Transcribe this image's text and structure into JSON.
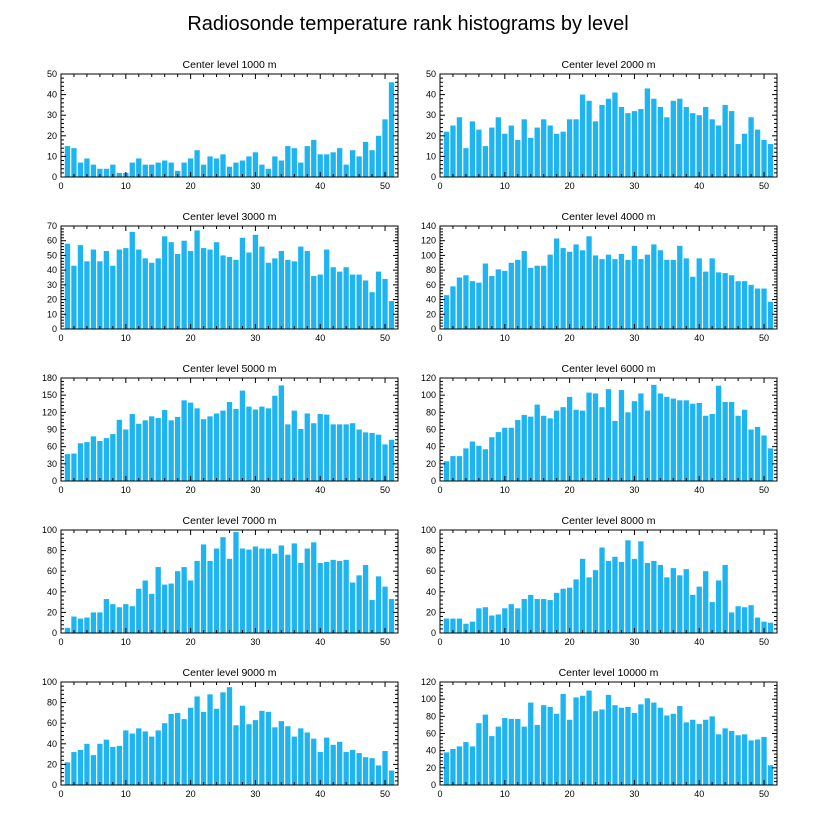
{
  "figure": {
    "title": "Radiosonde temperature rank histograms by level"
  },
  "chart_data": [
    {
      "type": "bar",
      "title": "Center level 1000 m",
      "xlim": [
        0,
        52
      ],
      "ylim": [
        0,
        50
      ],
      "xticks": [
        0,
        10,
        20,
        30,
        40,
        50
      ],
      "yticks": [
        0,
        10,
        20,
        30,
        40,
        50
      ],
      "x": [
        1,
        2,
        3,
        4,
        5,
        6,
        7,
        8,
        9,
        10,
        11,
        12,
        13,
        14,
        15,
        16,
        17,
        18,
        19,
        20,
        21,
        22,
        23,
        24,
        25,
        26,
        27,
        28,
        29,
        30,
        31,
        32,
        33,
        34,
        35,
        36,
        37,
        38,
        39,
        40,
        41,
        42,
        43,
        44,
        45,
        46,
        47,
        48,
        49,
        50,
        51
      ],
      "values": [
        15,
        14,
        7,
        9,
        6,
        4,
        4,
        6,
        2,
        2,
        7,
        9,
        6,
        6,
        7,
        8,
        7,
        3,
        7,
        9,
        13,
        6,
        10,
        9,
        11,
        5,
        7,
        8,
        10,
        12,
        6,
        4,
        10,
        8,
        15,
        14,
        7,
        15,
        18,
        11,
        11,
        12,
        14,
        6,
        13,
        10,
        17,
        13,
        20,
        28,
        46
      ]
    },
    {
      "type": "bar",
      "title": "Center level 2000 m",
      "xlim": [
        0,
        52
      ],
      "ylim": [
        0,
        50
      ],
      "xticks": [
        0,
        10,
        20,
        30,
        40,
        50
      ],
      "yticks": [
        0,
        10,
        20,
        30,
        40,
        50
      ],
      "x": [
        1,
        2,
        3,
        4,
        5,
        6,
        7,
        8,
        9,
        10,
        11,
        12,
        13,
        14,
        15,
        16,
        17,
        18,
        19,
        20,
        21,
        22,
        23,
        24,
        25,
        26,
        27,
        28,
        29,
        30,
        31,
        32,
        33,
        34,
        35,
        36,
        37,
        38,
        39,
        40,
        41,
        42,
        43,
        44,
        45,
        46,
        47,
        48,
        49,
        50,
        51
      ],
      "values": [
        22,
        25,
        29,
        14,
        27,
        23,
        15,
        24,
        29,
        21,
        25,
        18,
        28,
        19,
        24,
        28,
        25,
        21,
        22,
        28,
        28,
        40,
        37,
        27,
        35,
        38,
        41,
        34,
        31,
        32,
        33,
        43,
        38,
        34,
        29,
        37,
        38,
        34,
        31,
        30,
        34,
        28,
        25,
        35,
        32,
        16,
        21,
        29,
        23,
        18,
        16
      ]
    },
    {
      "type": "bar",
      "title": "Center level 3000 m",
      "xlim": [
        0,
        52
      ],
      "ylim": [
        0,
        70
      ],
      "xticks": [
        0,
        10,
        20,
        30,
        40,
        50
      ],
      "yticks": [
        0,
        10,
        20,
        30,
        40,
        50,
        60,
        70
      ],
      "x": [
        1,
        2,
        3,
        4,
        5,
        6,
        7,
        8,
        9,
        10,
        11,
        12,
        13,
        14,
        15,
        16,
        17,
        18,
        19,
        20,
        21,
        22,
        23,
        24,
        25,
        26,
        27,
        28,
        29,
        30,
        31,
        32,
        33,
        34,
        35,
        36,
        37,
        38,
        39,
        40,
        41,
        42,
        43,
        44,
        45,
        46,
        47,
        48,
        49,
        50,
        51
      ],
      "values": [
        58,
        43,
        57,
        46,
        54,
        46,
        53,
        43,
        54,
        55,
        66,
        54,
        48,
        45,
        48,
        63,
        59,
        51,
        60,
        53,
        67,
        55,
        54,
        59,
        50,
        49,
        47,
        62,
        52,
        64,
        56,
        45,
        48,
        53,
        47,
        46,
        56,
        53,
        36,
        37,
        54,
        42,
        39,
        42,
        37,
        37,
        33,
        25,
        39,
        34,
        19
      ]
    },
    {
      "type": "bar",
      "title": "Center level 4000 m",
      "xlim": [
        0,
        52
      ],
      "ylim": [
        0,
        140
      ],
      "xticks": [
        0,
        10,
        20,
        30,
        40,
        50
      ],
      "yticks": [
        0,
        20,
        40,
        60,
        80,
        100,
        120,
        140
      ],
      "x": [
        1,
        2,
        3,
        4,
        5,
        6,
        7,
        8,
        9,
        10,
        11,
        12,
        13,
        14,
        15,
        16,
        17,
        18,
        19,
        20,
        21,
        22,
        23,
        24,
        25,
        26,
        27,
        28,
        29,
        30,
        31,
        32,
        33,
        34,
        35,
        36,
        37,
        38,
        39,
        40,
        41,
        42,
        43,
        44,
        45,
        46,
        47,
        48,
        49,
        50,
        51
      ],
      "values": [
        46,
        58,
        70,
        73,
        65,
        63,
        89,
        72,
        81,
        79,
        90,
        94,
        106,
        83,
        86,
        86,
        101,
        123,
        110,
        105,
        115,
        107,
        126,
        100,
        95,
        101,
        95,
        102,
        94,
        113,
        95,
        101,
        115,
        107,
        94,
        94,
        113,
        96,
        71,
        96,
        78,
        96,
        77,
        76,
        73,
        65,
        65,
        60,
        55,
        55,
        37
      ]
    },
    {
      "type": "bar",
      "title": "Center level 5000 m",
      "xlim": [
        0,
        52
      ],
      "ylim": [
        0,
        180
      ],
      "xticks": [
        0,
        10,
        20,
        30,
        40,
        50
      ],
      "yticks": [
        0,
        30,
        60,
        90,
        120,
        150,
        180
      ],
      "x": [
        1,
        2,
        3,
        4,
        5,
        6,
        7,
        8,
        9,
        10,
        11,
        12,
        13,
        14,
        15,
        16,
        17,
        18,
        19,
        20,
        21,
        22,
        23,
        24,
        25,
        26,
        27,
        28,
        29,
        30,
        31,
        32,
        33,
        34,
        35,
        36,
        37,
        38,
        39,
        40,
        41,
        42,
        43,
        44,
        45,
        46,
        47,
        48,
        49,
        50,
        51
      ],
      "values": [
        47,
        48,
        66,
        68,
        78,
        70,
        75,
        82,
        107,
        90,
        117,
        100,
        106,
        113,
        110,
        124,
        106,
        112,
        141,
        137,
        127,
        108,
        113,
        118,
        123,
        138,
        126,
        158,
        130,
        125,
        130,
        127,
        149,
        167,
        99,
        123,
        91,
        118,
        101,
        117,
        116,
        99,
        99,
        99,
        101,
        90,
        85,
        84,
        81,
        64,
        72
      ]
    },
    {
      "type": "bar",
      "title": "Center level 6000 m",
      "xlim": [
        0,
        52
      ],
      "ylim": [
        0,
        120
      ],
      "xticks": [
        0,
        10,
        20,
        30,
        40,
        50
      ],
      "yticks": [
        0,
        20,
        40,
        60,
        80,
        100,
        120
      ],
      "x": [
        1,
        2,
        3,
        4,
        5,
        6,
        7,
        8,
        9,
        10,
        11,
        12,
        13,
        14,
        15,
        16,
        17,
        18,
        19,
        20,
        21,
        22,
        23,
        24,
        25,
        26,
        27,
        28,
        29,
        30,
        31,
        32,
        33,
        34,
        35,
        36,
        37,
        38,
        39,
        40,
        41,
        42,
        43,
        44,
        45,
        46,
        47,
        48,
        49,
        50,
        51
      ],
      "values": [
        23,
        29,
        29,
        38,
        46,
        41,
        37,
        51,
        57,
        62,
        62,
        71,
        77,
        75,
        89,
        76,
        73,
        82,
        86,
        98,
        83,
        82,
        103,
        102,
        86,
        107,
        70,
        106,
        80,
        93,
        102,
        82,
        112,
        102,
        98,
        96,
        94,
        94,
        90,
        91,
        76,
        78,
        111,
        92,
        92,
        76,
        83,
        60,
        63,
        53,
        38
      ]
    },
    {
      "type": "bar",
      "title": "Center level 7000 m",
      "xlim": [
        0,
        52
      ],
      "ylim": [
        0,
        100
      ],
      "xticks": [
        0,
        10,
        20,
        30,
        40,
        50
      ],
      "yticks": [
        0,
        20,
        40,
        60,
        80,
        100
      ],
      "x": [
        1,
        2,
        3,
        4,
        5,
        6,
        7,
        8,
        9,
        10,
        11,
        12,
        13,
        14,
        15,
        16,
        17,
        18,
        19,
        20,
        21,
        22,
        23,
        24,
        25,
        26,
        27,
        28,
        29,
        30,
        31,
        32,
        33,
        34,
        35,
        36,
        37,
        38,
        39,
        40,
        41,
        42,
        43,
        44,
        45,
        46,
        47,
        48,
        49,
        50,
        51
      ],
      "values": [
        5,
        16,
        14,
        15,
        20,
        20,
        33,
        28,
        25,
        28,
        26,
        43,
        51,
        38,
        64,
        47,
        48,
        60,
        64,
        51,
        70,
        86,
        70,
        82,
        93,
        72,
        98,
        82,
        81,
        84,
        82,
        82,
        77,
        85,
        76,
        87,
        68,
        82,
        88,
        68,
        69,
        71,
        70,
        71,
        49,
        56,
        66,
        32,
        55,
        45,
        33
      ]
    },
    {
      "type": "bar",
      "title": "Center level 8000 m",
      "xlim": [
        0,
        52
      ],
      "ylim": [
        0,
        100
      ],
      "xticks": [
        0,
        10,
        20,
        30,
        40,
        50
      ],
      "yticks": [
        0,
        20,
        40,
        60,
        80,
        100
      ],
      "x": [
        1,
        2,
        3,
        4,
        5,
        6,
        7,
        8,
        9,
        10,
        11,
        12,
        13,
        14,
        15,
        16,
        17,
        18,
        19,
        20,
        21,
        22,
        23,
        24,
        25,
        26,
        27,
        28,
        29,
        30,
        31,
        32,
        33,
        34,
        35,
        36,
        37,
        38,
        39,
        40,
        41,
        42,
        43,
        44,
        45,
        46,
        47,
        48,
        49,
        50,
        51
      ],
      "values": [
        14,
        14,
        14,
        9,
        11,
        24,
        25,
        17,
        18,
        24,
        28,
        24,
        33,
        37,
        33,
        33,
        32,
        39,
        43,
        44,
        52,
        72,
        54,
        61,
        83,
        70,
        74,
        69,
        90,
        72,
        89,
        68,
        70,
        66,
        54,
        63,
        56,
        62,
        37,
        45,
        60,
        30,
        51,
        66,
        20,
        26,
        25,
        27,
        15,
        11,
        10
      ]
    },
    {
      "type": "bar",
      "title": "Center level 9000 m",
      "xlim": [
        0,
        52
      ],
      "ylim": [
        0,
        100
      ],
      "xticks": [
        0,
        10,
        20,
        30,
        40,
        50
      ],
      "yticks": [
        0,
        20,
        40,
        60,
        80,
        100
      ],
      "x": [
        1,
        2,
        3,
        4,
        5,
        6,
        7,
        8,
        9,
        10,
        11,
        12,
        13,
        14,
        15,
        16,
        17,
        18,
        19,
        20,
        21,
        22,
        23,
        24,
        25,
        26,
        27,
        28,
        29,
        30,
        31,
        32,
        33,
        34,
        35,
        36,
        37,
        38,
        39,
        40,
        41,
        42,
        43,
        44,
        45,
        46,
        47,
        48,
        49,
        50,
        51
      ],
      "values": [
        22,
        32,
        34,
        40,
        29,
        40,
        44,
        37,
        38,
        53,
        50,
        55,
        52,
        47,
        53,
        60,
        69,
        70,
        64,
        75,
        86,
        71,
        88,
        74,
        90,
        95,
        58,
        77,
        59,
        63,
        72,
        71,
        56,
        62,
        57,
        47,
        55,
        51,
        45,
        32,
        46,
        39,
        42,
        32,
        34,
        31,
        27,
        26,
        19,
        33,
        14
      ]
    },
    {
      "type": "bar",
      "title": "Center level 10000 m",
      "xlim": [
        0,
        52
      ],
      "ylim": [
        0,
        120
      ],
      "xticks": [
        0,
        10,
        20,
        30,
        40,
        50
      ],
      "yticks": [
        0,
        20,
        40,
        60,
        80,
        100,
        120
      ],
      "x": [
        1,
        2,
        3,
        4,
        5,
        6,
        7,
        8,
        9,
        10,
        11,
        12,
        13,
        14,
        15,
        16,
        17,
        18,
        19,
        20,
        21,
        22,
        23,
        24,
        25,
        26,
        27,
        28,
        29,
        30,
        31,
        32,
        33,
        34,
        35,
        36,
        37,
        38,
        39,
        40,
        41,
        42,
        43,
        44,
        45,
        46,
        47,
        48,
        49,
        50,
        51
      ],
      "values": [
        38,
        42,
        45,
        50,
        45,
        72,
        82,
        57,
        68,
        78,
        77,
        77,
        68,
        96,
        70,
        93,
        91,
        83,
        106,
        76,
        102,
        104,
        110,
        86,
        88,
        105,
        93,
        90,
        91,
        84,
        94,
        101,
        96,
        90,
        81,
        83,
        92,
        73,
        76,
        71,
        76,
        80,
        59,
        66,
        63,
        58,
        59,
        52,
        53,
        56,
        23
      ]
    }
  ]
}
